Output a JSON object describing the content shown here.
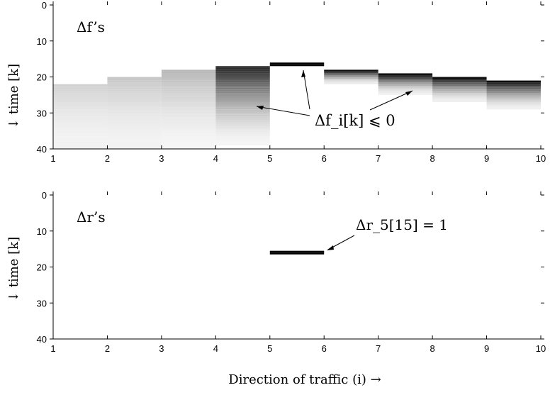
{
  "chart_data": [
    {
      "type": "heatmap",
      "panel_label": "Δf’s",
      "ylabel": "↓ time [k]",
      "xlim": [
        1,
        10
      ],
      "ylim": [
        40,
        0
      ],
      "x_ticks": [
        "1",
        "2",
        "3",
        "4",
        "5",
        "6",
        "7",
        "8",
        "9",
        "10"
      ],
      "y_ticks": [
        "0",
        "10",
        "20",
        "30",
        "40"
      ],
      "annotation": "Δf_i[k] ⩽ 0",
      "segments": [
        {
          "x": [
            1,
            2
          ],
          "k_start": 22,
          "k_end": 40,
          "peak_darkness": 0.18,
          "tail_darkness": 0.05
        },
        {
          "x": [
            2,
            3
          ],
          "k_start": 20,
          "k_end": 40,
          "peak_darkness": 0.22,
          "tail_darkness": 0.05
        },
        {
          "x": [
            3,
            4
          ],
          "k_start": 18,
          "k_end": 40,
          "peak_darkness": 0.28,
          "tail_darkness": 0.04
        },
        {
          "x": [
            4,
            5
          ],
          "k_start": 17,
          "k_end": 39,
          "peak_darkness": 0.85,
          "tail_darkness": 0.04
        },
        {
          "x": [
            5,
            6
          ],
          "k_start": 16,
          "k_end": 17,
          "peak_darkness": 1.0,
          "tail_darkness": 1.0
        },
        {
          "x": [
            6,
            7
          ],
          "k_start": 18,
          "k_end": 22,
          "peak_darkness": 0.95,
          "tail_darkness": 0.08
        },
        {
          "x": [
            7,
            8
          ],
          "k_start": 19,
          "k_end": 25,
          "peak_darkness": 0.95,
          "tail_darkness": 0.06
        },
        {
          "x": [
            8,
            9
          ],
          "k_start": 20,
          "k_end": 27,
          "peak_darkness": 0.95,
          "tail_darkness": 0.06
        },
        {
          "x": [
            9,
            10
          ],
          "k_start": 21,
          "k_end": 29,
          "peak_darkness": 0.95,
          "tail_darkness": 0.06
        }
      ]
    },
    {
      "type": "heatmap",
      "panel_label": "Δr’s",
      "ylabel": "↓ time [k]",
      "xlim": [
        1,
        10
      ],
      "ylim": [
        40,
        0
      ],
      "x_ticks": [
        "1",
        "2",
        "3",
        "4",
        "5",
        "6",
        "7",
        "8",
        "9",
        "10"
      ],
      "y_ticks": [
        "0",
        "10",
        "20",
        "30",
        "40"
      ],
      "annotation": "Δr_5[15] = 1",
      "segments": [
        {
          "x": [
            5,
            6
          ],
          "k_start": 15.5,
          "k_end": 16.5,
          "peak_darkness": 1.0,
          "tail_darkness": 1.0
        }
      ]
    }
  ],
  "xlabel": "Direction of traffic  (i) →"
}
